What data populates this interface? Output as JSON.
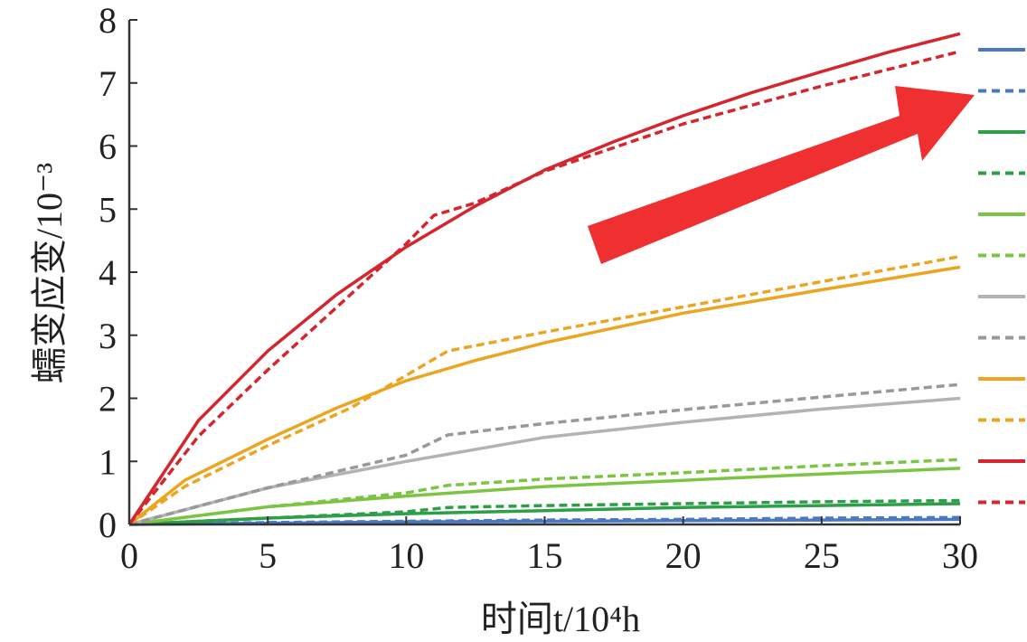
{
  "chart_data": {
    "type": "line",
    "title": "",
    "xlabel": "时间t/10⁴h",
    "ylabel": "蠕变应变/10⁻³",
    "xlim": [
      0,
      30
    ],
    "ylim": [
      0,
      8
    ],
    "xticks": [
      "0",
      "5",
      "10",
      "15",
      "20",
      "25",
      "30"
    ],
    "yticks": [
      "0",
      "1",
      "2",
      "3",
      "4",
      "5",
      "6",
      "7",
      "8"
    ],
    "grid": false,
    "legend": "right",
    "annotation": "red arrow pointing up-right toward the legend",
    "series": [
      {
        "color": "#4a78c2",
        "style": "solid",
        "x": [
          0,
          5,
          10,
          15,
          20,
          25,
          30
        ],
        "y": [
          0,
          0.02,
          0.04,
          0.05,
          0.06,
          0.07,
          0.08
        ]
      },
      {
        "color": "#4a78c2",
        "style": "dashed",
        "x": [
          0,
          5,
          10,
          15,
          20,
          25,
          30
        ],
        "y": [
          0,
          0.03,
          0.05,
          0.07,
          0.08,
          0.1,
          0.11
        ]
      },
      {
        "color": "#2e9e48",
        "style": "solid",
        "x": [
          0,
          5,
          10,
          15,
          20,
          25,
          30
        ],
        "y": [
          0,
          0.1,
          0.17,
          0.22,
          0.27,
          0.3,
          0.33
        ]
      },
      {
        "color": "#2e9e48",
        "style": "dashed",
        "x": [
          0,
          5,
          10,
          11.5,
          15,
          20,
          25,
          30
        ],
        "y": [
          0,
          0.1,
          0.2,
          0.27,
          0.3,
          0.33,
          0.36,
          0.38
        ]
      },
      {
        "color": "#7cc443",
        "style": "solid",
        "x": [
          0,
          5,
          10,
          15,
          20,
          25,
          30
        ],
        "y": [
          0,
          0.28,
          0.45,
          0.6,
          0.7,
          0.8,
          0.89
        ]
      },
      {
        "color": "#7cc443",
        "style": "dashed",
        "x": [
          0,
          5,
          10,
          11.5,
          15,
          20,
          25,
          30
        ],
        "y": [
          0,
          0.28,
          0.5,
          0.62,
          0.72,
          0.82,
          0.93,
          1.03
        ]
      },
      {
        "color": "#b3b3b3",
        "style": "solid",
        "x": [
          0,
          5,
          10,
          15,
          20,
          25,
          30
        ],
        "y": [
          0,
          0.58,
          1.0,
          1.38,
          1.62,
          1.83,
          2.0
        ]
      },
      {
        "color": "#999999",
        "style": "dashed",
        "x": [
          0,
          5,
          10,
          11.5,
          15,
          20,
          25,
          30
        ],
        "y": [
          0,
          0.58,
          1.1,
          1.42,
          1.6,
          1.82,
          2.02,
          2.22
        ]
      },
      {
        "color": "#eba521",
        "style": "solid",
        "x": [
          0,
          2,
          5,
          7.5,
          10,
          12.5,
          15,
          20,
          25,
          30
        ],
        "y": [
          0,
          0.7,
          1.35,
          1.85,
          2.28,
          2.6,
          2.88,
          3.35,
          3.72,
          4.08
        ]
      },
      {
        "color": "#eba521",
        "style": "dashed",
        "x": [
          0,
          2,
          5,
          8,
          11.5,
          15,
          20,
          25,
          30
        ],
        "y": [
          0,
          0.6,
          1.25,
          1.85,
          2.75,
          3.05,
          3.45,
          3.85,
          4.25
        ]
      },
      {
        "color": "#d4262e",
        "style": "solid",
        "x": [
          0,
          2.5,
          5,
          7.5,
          10,
          12.5,
          15,
          17.5,
          20,
          22.5,
          25,
          27.5,
          30
        ],
        "y": [
          0,
          1.65,
          2.75,
          3.65,
          4.4,
          5.05,
          5.62,
          6.07,
          6.48,
          6.85,
          7.18,
          7.5,
          7.78
        ]
      },
      {
        "color": "#d4262e",
        "style": "dashed",
        "x": [
          0,
          2.5,
          5,
          7.5,
          10,
          11,
          12.5,
          15,
          20,
          25,
          30
        ],
        "y": [
          0,
          1.4,
          2.45,
          3.45,
          4.45,
          4.9,
          5.1,
          5.6,
          6.35,
          6.95,
          7.5
        ]
      }
    ]
  },
  "colors": {
    "arrow": "#f03030",
    "axis": "#333333"
  }
}
